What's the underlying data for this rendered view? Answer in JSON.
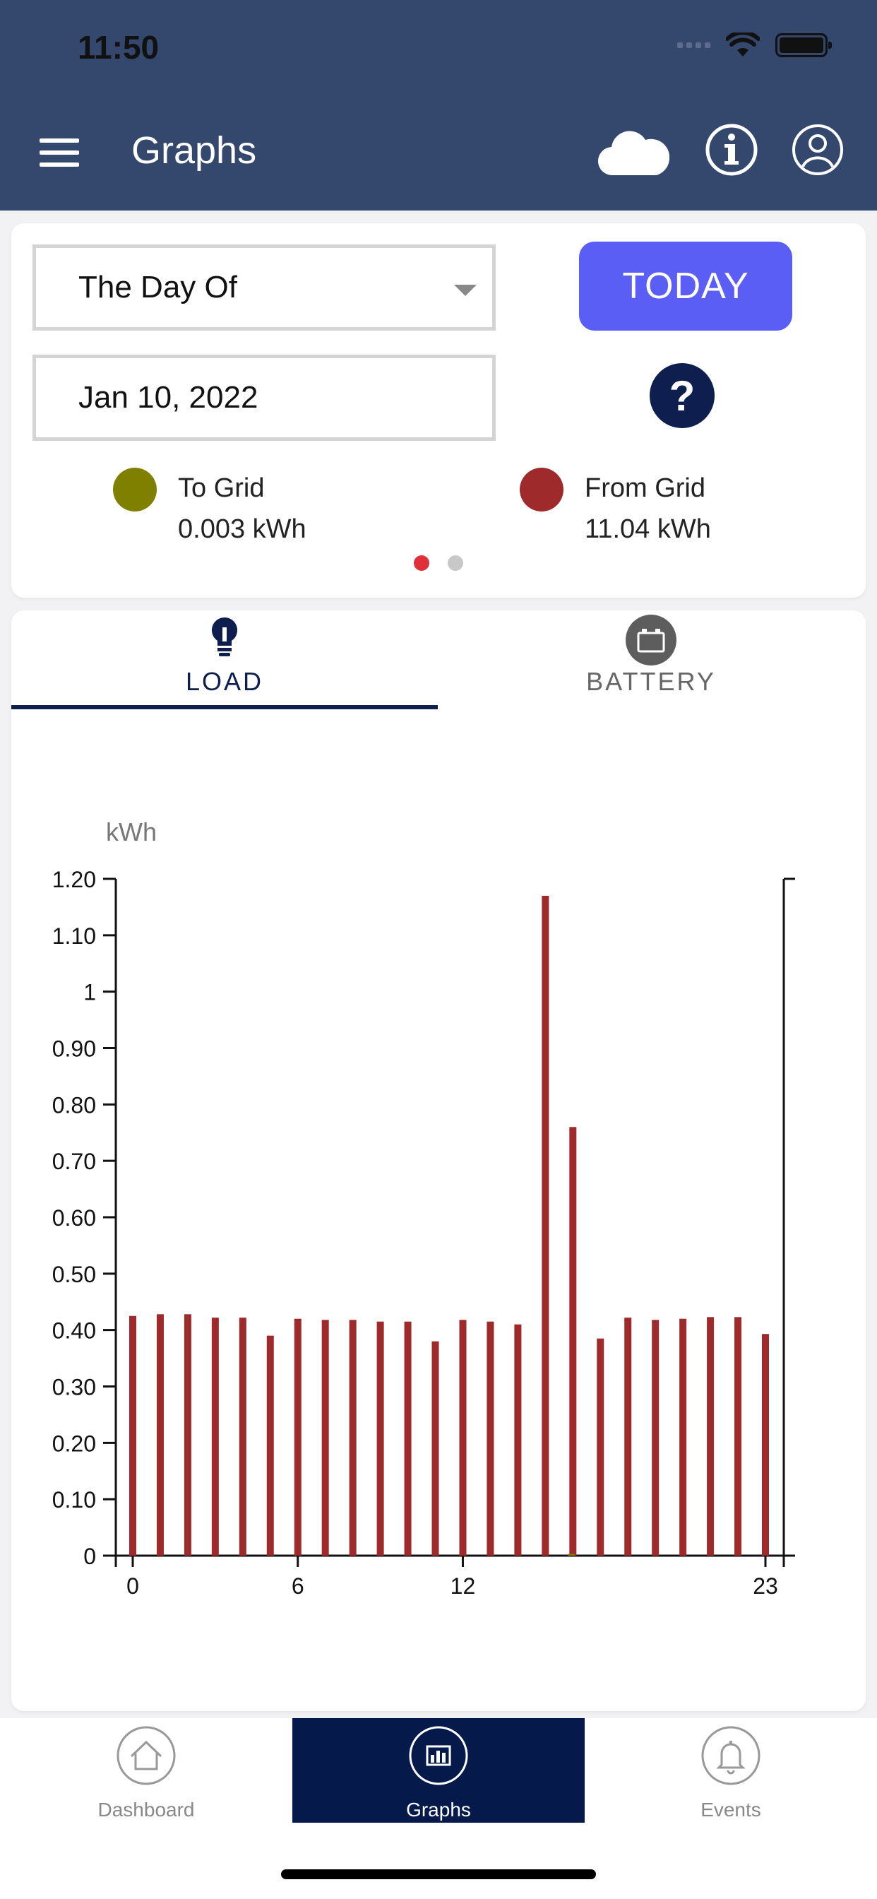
{
  "status_bar": {
    "time": "11:50"
  },
  "header": {
    "title": "Graphs"
  },
  "controls": {
    "period_select": "The Day Of",
    "date": "Jan 10, 2022",
    "today_button": "TODAY",
    "help_glyph": "?"
  },
  "legend": [
    {
      "label": "To Grid",
      "value": "0.003 kWh",
      "color": "#808000"
    },
    {
      "label": "From Grid",
      "value": "11.04 kWh",
      "color": "#9e2a2b"
    }
  ],
  "pager": {
    "pages": 2,
    "active": 0,
    "active_color": "#e0303a",
    "inactive_color": "#c8c8c8"
  },
  "tabs": [
    {
      "label": "LOAD",
      "icon": "lightbulb-icon",
      "active": true
    },
    {
      "label": "BATTERY",
      "icon": "battery-icon",
      "active": false
    }
  ],
  "chart_data": {
    "type": "bar",
    "ylabel": "kWh",
    "ylim": [
      0,
      1.2
    ],
    "yticks": [
      "1.20",
      "1.10",
      "1",
      "0.90",
      "0.80",
      "0.70",
      "0.60",
      "0.50",
      "0.40",
      "0.30",
      "0.20",
      "0.10",
      "0"
    ],
    "ytick_values": [
      1.2,
      1.1,
      1.0,
      0.9,
      0.8,
      0.7,
      0.6,
      0.5,
      0.4,
      0.3,
      0.2,
      0.1,
      0
    ],
    "xticks": [
      "0",
      "6",
      "12",
      "23"
    ],
    "xtick_values": [
      0,
      6,
      12,
      23
    ],
    "x": [
      0,
      1,
      2,
      3,
      4,
      5,
      6,
      7,
      8,
      9,
      10,
      11,
      12,
      13,
      14,
      15,
      16,
      17,
      18,
      19,
      20,
      21,
      22,
      23
    ],
    "series": [
      {
        "name": "From Grid",
        "color": "#9e2a2b",
        "values": [
          0.425,
          0.428,
          0.428,
          0.422,
          0.422,
          0.39,
          0.42,
          0.418,
          0.418,
          0.415,
          0.415,
          0.38,
          0.418,
          0.415,
          0.41,
          1.17,
          0.76,
          0.385,
          0.422,
          0.418,
          0.42,
          0.423,
          0.423,
          0.393
        ]
      },
      {
        "name": "To Grid",
        "color": "#808000",
        "values": [
          0,
          0,
          0,
          0,
          0,
          0,
          0,
          0,
          0,
          0,
          0,
          0,
          0,
          0,
          0,
          0,
          0.003,
          0,
          0,
          0,
          0,
          0,
          0,
          0
        ]
      }
    ]
  },
  "tabbar": [
    {
      "label": "Dashboard",
      "icon": "home-icon",
      "active": false
    },
    {
      "label": "Graphs",
      "icon": "bar-chart-icon",
      "active": true
    },
    {
      "label": "Events",
      "icon": "bell-icon",
      "active": false
    }
  ]
}
